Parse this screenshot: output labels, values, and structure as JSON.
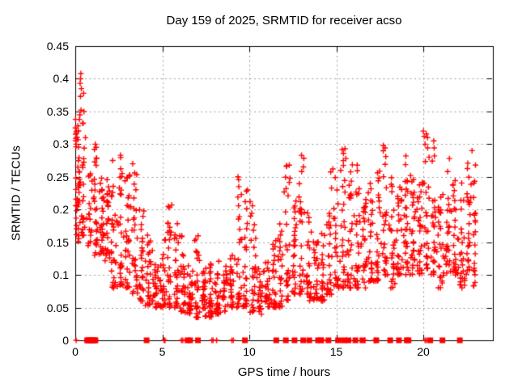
{
  "chart_data": {
    "type": "scatter",
    "title": "Day 159 of 2025, SRMTID for receiver acso",
    "xlabel": "GPS time / hours",
    "ylabel": "SRMTID / TECUs",
    "xlim": [
      0,
      24
    ],
    "ylim": [
      0,
      0.45
    ],
    "x_ticks": [
      0,
      5,
      10,
      15,
      20
    ],
    "x_tick_labels": [
      "0",
      "5",
      "10",
      "15",
      "20"
    ],
    "y_ticks": [
      0,
      0.05,
      0.1,
      0.15,
      0.2,
      0.25,
      0.3,
      0.35,
      0.4,
      0.45
    ],
    "y_tick_labels": [
      "0",
      "0.05",
      "0.1",
      "0.15",
      "0.2",
      "0.25",
      "0.3",
      "0.35",
      "0.4",
      "0.45"
    ],
    "grid": "dotted",
    "legend": "none",
    "marker_color": "#ff0000",
    "grid_color": "#9c9c9c",
    "axis_color": "#000000",
    "background_color": "#ffffff",
    "seed": 20250159,
    "series": [
      {
        "name": "srmtid-scatter",
        "marker": "plus",
        "density_buckets": [
          [
            0.0,
            0.08,
            18,
            0.16,
            0.34,
            1.2
          ],
          [
            0.08,
            0.3,
            26,
            0.15,
            0.33,
            1.3
          ],
          [
            0.3,
            0.6,
            22,
            0.16,
            0.4,
            1.5
          ],
          [
            0.6,
            1.0,
            18,
            0.14,
            0.26,
            1.3
          ],
          [
            1.0,
            1.35,
            26,
            0.13,
            0.3,
            1.5
          ],
          [
            1.35,
            1.7,
            28,
            0.13,
            0.25,
            1.2
          ],
          [
            1.7,
            2.0,
            24,
            0.12,
            0.26,
            1.5
          ],
          [
            2.0,
            2.4,
            28,
            0.08,
            0.27,
            1.6
          ],
          [
            2.4,
            2.8,
            30,
            0.08,
            0.28,
            1.7
          ],
          [
            2.8,
            3.2,
            30,
            0.08,
            0.26,
            1.5
          ],
          [
            3.2,
            3.6,
            28,
            0.07,
            0.27,
            1.8
          ],
          [
            3.6,
            4.0,
            26,
            0.06,
            0.2,
            1.5
          ],
          [
            4.0,
            4.4,
            26,
            0.05,
            0.19,
            1.6
          ],
          [
            4.4,
            4.8,
            26,
            0.05,
            0.14,
            1.3
          ],
          [
            4.8,
            5.2,
            26,
            0.05,
            0.16,
            1.5
          ],
          [
            5.2,
            5.6,
            26,
            0.05,
            0.21,
            1.8
          ],
          [
            5.6,
            6.0,
            26,
            0.05,
            0.18,
            1.6
          ],
          [
            6.0,
            6.4,
            28,
            0.04,
            0.16,
            1.6
          ],
          [
            6.4,
            6.8,
            28,
            0.04,
            0.13,
            1.3
          ],
          [
            6.8,
            7.2,
            28,
            0.035,
            0.17,
            1.8
          ],
          [
            7.2,
            7.6,
            28,
            0.035,
            0.11,
            1.3
          ],
          [
            7.6,
            8.0,
            26,
            0.035,
            0.12,
            1.4
          ],
          [
            8.0,
            8.4,
            26,
            0.04,
            0.14,
            1.5
          ],
          [
            8.4,
            8.8,
            24,
            0.04,
            0.12,
            1.3
          ],
          [
            8.8,
            9.2,
            24,
            0.05,
            0.13,
            1.4
          ],
          [
            9.2,
            9.6,
            26,
            0.05,
            0.25,
            2.1
          ],
          [
            9.6,
            10.0,
            26,
            0.05,
            0.23,
            2.1
          ],
          [
            10.0,
            10.4,
            26,
            0.04,
            0.21,
            1.9
          ],
          [
            10.4,
            10.8,
            24,
            0.04,
            0.11,
            1.3
          ],
          [
            10.8,
            11.2,
            24,
            0.05,
            0.12,
            1.3
          ],
          [
            11.2,
            11.6,
            24,
            0.05,
            0.16,
            1.6
          ],
          [
            11.6,
            12.0,
            24,
            0.05,
            0.18,
            1.6
          ],
          [
            12.0,
            12.4,
            26,
            0.06,
            0.27,
            1.9
          ],
          [
            12.4,
            12.8,
            26,
            0.07,
            0.22,
            1.7
          ],
          [
            12.8,
            13.2,
            28,
            0.07,
            0.28,
            1.9
          ],
          [
            13.2,
            13.6,
            26,
            0.06,
            0.2,
            1.6
          ],
          [
            13.6,
            14.0,
            24,
            0.06,
            0.16,
            1.3
          ],
          [
            14.0,
            14.4,
            24,
            0.06,
            0.18,
            1.5
          ],
          [
            14.4,
            14.8,
            26,
            0.07,
            0.26,
            1.9
          ],
          [
            14.8,
            15.2,
            26,
            0.08,
            0.27,
            1.7
          ],
          [
            15.2,
            15.6,
            28,
            0.08,
            0.3,
            1.8
          ],
          [
            15.6,
            16.0,
            28,
            0.08,
            0.28,
            1.7
          ],
          [
            16.0,
            16.4,
            28,
            0.08,
            0.26,
            1.7
          ],
          [
            16.4,
            16.8,
            26,
            0.08,
            0.22,
            1.5
          ],
          [
            16.8,
            17.2,
            26,
            0.09,
            0.24,
            1.6
          ],
          [
            17.2,
            17.6,
            26,
            0.09,
            0.26,
            1.7
          ],
          [
            17.6,
            18.0,
            26,
            0.1,
            0.3,
            1.8
          ],
          [
            18.0,
            18.4,
            26,
            0.08,
            0.26,
            1.6
          ],
          [
            18.4,
            18.8,
            26,
            0.1,
            0.24,
            1.4
          ],
          [
            18.8,
            19.2,
            28,
            0.1,
            0.28,
            1.6
          ],
          [
            19.2,
            19.6,
            28,
            0.1,
            0.26,
            1.5
          ],
          [
            19.6,
            20.0,
            28,
            0.1,
            0.25,
            1.4
          ],
          [
            20.0,
            20.4,
            28,
            0.11,
            0.32,
            1.7
          ],
          [
            20.4,
            20.8,
            26,
            0.1,
            0.3,
            1.7
          ],
          [
            20.8,
            21.2,
            26,
            0.08,
            0.24,
            1.4
          ],
          [
            21.2,
            21.6,
            26,
            0.1,
            0.27,
            1.5
          ],
          [
            21.6,
            22.0,
            26,
            0.1,
            0.25,
            1.4
          ],
          [
            22.0,
            22.4,
            26,
            0.08,
            0.25,
            1.4
          ],
          [
            22.4,
            22.8,
            26,
            0.1,
            0.29,
            1.6
          ],
          [
            22.8,
            23.05,
            20,
            0.08,
            0.25,
            1.4
          ]
        ],
        "highlight_points": [
          [
            0.3,
            0.4
          ],
          [
            0.32,
            0.408
          ],
          [
            0.28,
            0.393
          ],
          [
            0.35,
            0.385
          ],
          [
            0.3,
            0.373
          ],
          [
            0.33,
            0.352
          ],
          [
            0.27,
            0.345
          ],
          [
            0.24,
            0.338
          ],
          [
            0.5,
            0.35
          ],
          [
            0.45,
            0.332
          ],
          [
            0.15,
            0.328
          ],
          [
            0.05,
            0.3
          ],
          [
            1.15,
            0.3
          ],
          [
            2.15,
            0.275
          ],
          [
            2.6,
            0.283
          ],
          [
            3.3,
            0.27
          ],
          [
            5.35,
            0.205
          ],
          [
            9.35,
            0.25
          ],
          [
            9.4,
            0.235
          ],
          [
            9.9,
            0.23
          ],
          [
            10.05,
            0.212
          ],
          [
            12.3,
            0.268
          ],
          [
            13.0,
            0.283
          ],
          [
            14.8,
            0.262
          ],
          [
            15.5,
            0.293
          ],
          [
            15.55,
            0.278
          ],
          [
            16.2,
            0.268
          ],
          [
            17.7,
            0.298
          ],
          [
            19.0,
            0.282
          ],
          [
            20.0,
            0.32
          ],
          [
            20.05,
            0.312
          ],
          [
            20.1,
            0.3
          ],
          [
            20.6,
            0.305
          ],
          [
            21.5,
            0.278
          ],
          [
            22.8,
            0.29
          ],
          [
            23.0,
            0.268
          ]
        ]
      },
      {
        "name": "zero-line-plus-flags",
        "marker": "plus",
        "y": 0,
        "x": [
          0.05,
          5.1,
          5.16,
          6.1,
          6.18,
          7.85,
          7.92,
          8.12,
          9.0,
          9.08,
          14.2,
          14.26,
          15.3,
          16.65,
          17.2,
          17.26,
          20.1,
          20.18
        ]
      },
      {
        "name": "zero-line-square-flags",
        "marker": "filled-square",
        "y": 0,
        "x": [
          0.68,
          0.74,
          0.8,
          0.86,
          0.92,
          0.98,
          1.04,
          1.1,
          1.16,
          4.1,
          6.45,
          6.6,
          7.05,
          9.75,
          11.55,
          12.1,
          12.6,
          13.1,
          13.45,
          13.95,
          14.1,
          14.55,
          15.1,
          15.45,
          15.7,
          16.1,
          16.5,
          17.3,
          18.1,
          18.6,
          19.05,
          19.15,
          20.4,
          21.1,
          22.1
        ]
      }
    ]
  }
}
